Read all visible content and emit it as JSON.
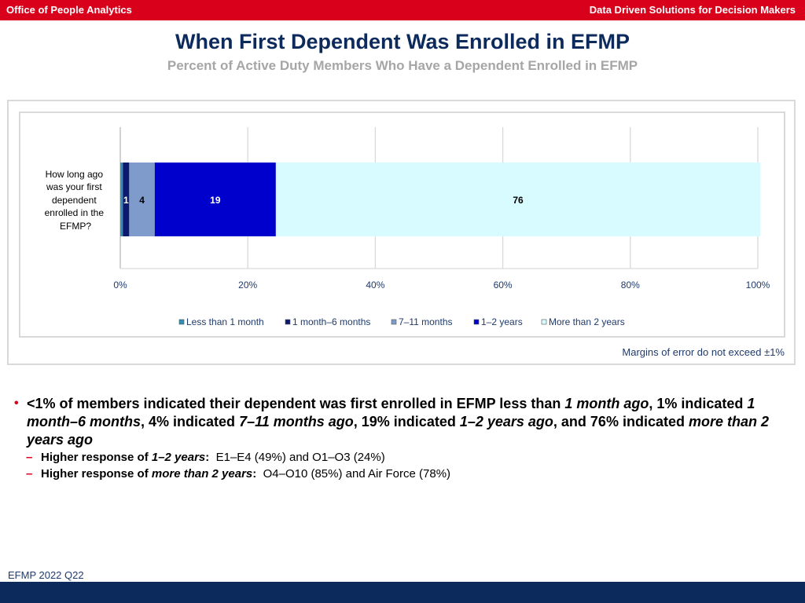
{
  "header": {
    "left_text": "Office of People Analytics",
    "right_text": "Data Driven Solutions for Decision Makers"
  },
  "title": "When First Dependent Was Enrolled in EFMP",
  "subtitle": "Percent of Active Duty Members Who Have a Dependent Enrolled in EFMP",
  "chart_data": {
    "type": "bar",
    "orientation": "horizontal",
    "stacked": true,
    "category_label_lines": [
      "How long ago",
      "was your first",
      "dependent",
      "enrolled in the",
      "EFMP?"
    ],
    "x_ticks": [
      "0%",
      "20%",
      "40%",
      "60%",
      "80%",
      "100%"
    ],
    "xlim": [
      0,
      100
    ],
    "grid": true,
    "legend_position": "bottom",
    "series": [
      {
        "name": "Less than 1 month",
        "value": 0.4,
        "label": "",
        "color": "#2e8fb8"
      },
      {
        "name": "1 month–6 months",
        "value": 1,
        "label": "1",
        "color": "#0b1a6e"
      },
      {
        "name": "7–11 months",
        "value": 4,
        "label": "4",
        "color": "#7f9bcc"
      },
      {
        "name": "1–2 years",
        "value": 19,
        "label": "19",
        "color": "#0000cc"
      },
      {
        "name": "More than 2 years",
        "value": 76,
        "label": "76",
        "color": "#d7fbff"
      }
    ]
  },
  "margins_note": "Margins of error do not exceed ±1%",
  "bullet_main": [
    {
      "text": "<1% of members indicated their dependent was first enrolled in EFMP less than ",
      "italic": false
    },
    {
      "text": "1 month ago",
      "italic": true
    },
    {
      "text": ", 1% indicated ",
      "italic": false
    },
    {
      "text": "1 month–6 months",
      "italic": true
    },
    {
      "text": ", 4% indicated ",
      "italic": false
    },
    {
      "text": "7–11 months ago",
      "italic": true
    },
    {
      "text": ", 19% indicated ",
      "italic": false
    },
    {
      "text": "1–2 years ago",
      "italic": true
    },
    {
      "text": ", and 76% indicated ",
      "italic": false
    },
    {
      "text": "more than 2 years ago",
      "italic": true
    }
  ],
  "sub_bullets": [
    {
      "lead": "Higher response of ",
      "emph": "1–2 years",
      "colon": ":",
      "rest": "  E1–E4 (49%) and O1–O3 (24%)"
    },
    {
      "lead": "Higher response of ",
      "emph": "more than 2 years",
      "colon": ":",
      "rest": "  O4–O10 (85%) and Air Force (78%)"
    }
  ],
  "footer_label": "EFMP 2022 Q22"
}
